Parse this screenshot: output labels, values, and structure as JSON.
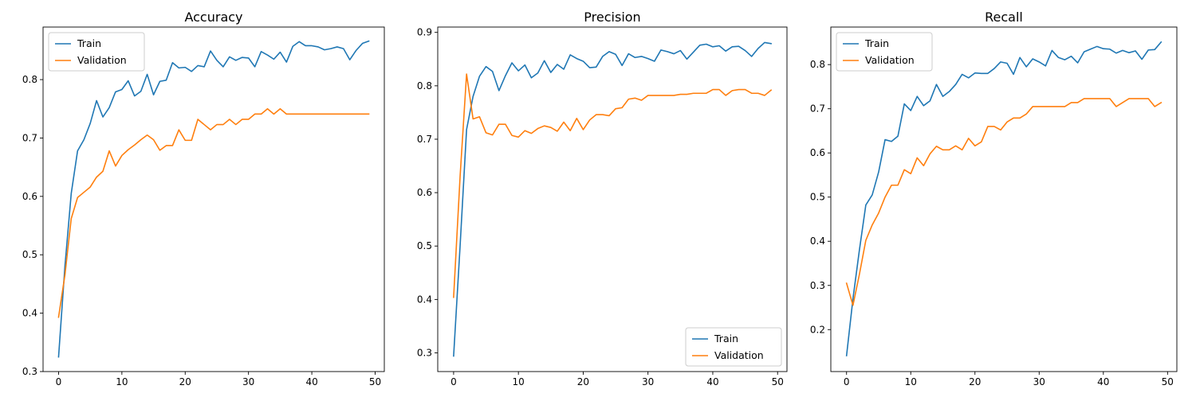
{
  "chart_data": [
    {
      "type": "line",
      "title": "Accuracy",
      "xlabel": "",
      "ylabel": "",
      "xlim": [
        -2.45,
        51.45
      ],
      "ylim": [
        0.3,
        0.89
      ],
      "xticks": [
        0,
        10,
        20,
        30,
        40,
        50
      ],
      "yticks": [
        0.3,
        0.4,
        0.5,
        0.6,
        0.7,
        0.8
      ],
      "ytick_labels": [
        "0.3",
        "0.4",
        "0.5",
        "0.6",
        "0.7",
        "0.8"
      ],
      "legend": "upper-left",
      "grid": false,
      "x": [
        0,
        1,
        2,
        3,
        4,
        5,
        6,
        7,
        8,
        9,
        10,
        11,
        12,
        13,
        14,
        15,
        16,
        17,
        18,
        19,
        20,
        21,
        22,
        23,
        24,
        25,
        26,
        27,
        28,
        29,
        30,
        31,
        32,
        33,
        34,
        35,
        36,
        37,
        38,
        39,
        40,
        41,
        42,
        43,
        44,
        45,
        46,
        47,
        48,
        49
      ],
      "series": [
        {
          "name": "Train",
          "color": "#1f77b4",
          "values": [
            0.325,
            0.48,
            0.605,
            0.678,
            0.697,
            0.725,
            0.764,
            0.736,
            0.752,
            0.779,
            0.783,
            0.798,
            0.772,
            0.78,
            0.809,
            0.774,
            0.797,
            0.799,
            0.829,
            0.82,
            0.821,
            0.814,
            0.824,
            0.822,
            0.849,
            0.833,
            0.822,
            0.839,
            0.833,
            0.838,
            0.837,
            0.822,
            0.848,
            0.842,
            0.835,
            0.847,
            0.83,
            0.857,
            0.865,
            0.858,
            0.858,
            0.856,
            0.851,
            0.853,
            0.856,
            0.853,
            0.834,
            0.85,
            0.862,
            0.866
          ]
        },
        {
          "name": "Validation",
          "color": "#ff7f0e",
          "values": [
            0.393,
            0.465,
            0.562,
            0.598,
            0.607,
            0.616,
            0.633,
            0.643,
            0.678,
            0.652,
            0.67,
            0.68,
            0.688,
            0.697,
            0.705,
            0.697,
            0.679,
            0.687,
            0.687,
            0.714,
            0.696,
            0.696,
            0.732,
            0.723,
            0.714,
            0.723,
            0.723,
            0.732,
            0.723,
            0.732,
            0.732,
            0.741,
            0.741,
            0.75,
            0.741,
            0.75,
            0.741,
            0.741,
            0.741,
            0.741,
            0.741,
            0.741,
            0.741,
            0.741,
            0.741,
            0.741,
            0.741,
            0.741,
            0.741,
            0.741
          ]
        }
      ]
    },
    {
      "type": "line",
      "title": "Precision",
      "xlabel": "",
      "ylabel": "",
      "xlim": [
        -2.45,
        51.45
      ],
      "ylim": [
        0.265,
        0.91
      ],
      "xticks": [
        0,
        10,
        20,
        30,
        40,
        50
      ],
      "yticks": [
        0.3,
        0.4,
        0.5,
        0.6,
        0.7,
        0.8,
        0.9
      ],
      "ytick_labels": [
        "0.3",
        "0.4",
        "0.5",
        "0.6",
        "0.7",
        "0.8",
        "0.9"
      ],
      "legend": "lower-right",
      "grid": false,
      "x": [
        0,
        1,
        2,
        3,
        4,
        5,
        6,
        7,
        8,
        9,
        10,
        11,
        12,
        13,
        14,
        15,
        16,
        17,
        18,
        19,
        20,
        21,
        22,
        23,
        24,
        25,
        26,
        27,
        28,
        29,
        30,
        31,
        32,
        33,
        34,
        35,
        36,
        37,
        38,
        39,
        40,
        41,
        42,
        43,
        44,
        45,
        46,
        47,
        48,
        49
      ],
      "series": [
        {
          "name": "Train",
          "color": "#1f77b4",
          "values": [
            0.294,
            0.5,
            0.718,
            0.78,
            0.818,
            0.836,
            0.827,
            0.791,
            0.819,
            0.843,
            0.828,
            0.839,
            0.815,
            0.824,
            0.847,
            0.825,
            0.84,
            0.831,
            0.858,
            0.851,
            0.846,
            0.834,
            0.835,
            0.855,
            0.864,
            0.859,
            0.838,
            0.86,
            0.853,
            0.855,
            0.851,
            0.846,
            0.867,
            0.864,
            0.86,
            0.866,
            0.85,
            0.863,
            0.876,
            0.878,
            0.873,
            0.875,
            0.865,
            0.873,
            0.874,
            0.866,
            0.855,
            0.87,
            0.881,
            0.879
          ]
        },
        {
          "name": "Validation",
          "color": "#ff7f0e",
          "values": [
            0.404,
            0.63,
            0.822,
            0.738,
            0.742,
            0.712,
            0.708,
            0.728,
            0.728,
            0.707,
            0.704,
            0.716,
            0.711,
            0.72,
            0.725,
            0.722,
            0.715,
            0.732,
            0.716,
            0.739,
            0.718,
            0.736,
            0.746,
            0.746,
            0.744,
            0.757,
            0.759,
            0.775,
            0.777,
            0.773,
            0.782,
            0.782,
            0.782,
            0.782,
            0.782,
            0.784,
            0.784,
            0.786,
            0.786,
            0.786,
            0.793,
            0.793,
            0.782,
            0.791,
            0.793,
            0.793,
            0.786,
            0.786,
            0.782,
            0.792
          ]
        }
      ]
    },
    {
      "type": "line",
      "title": "Recall",
      "xlabel": "",
      "ylabel": "",
      "xlim": [
        -2.45,
        51.45
      ],
      "ylim": [
        0.105,
        0.885
      ],
      "xticks": [
        0,
        10,
        20,
        30,
        40,
        50
      ],
      "yticks": [
        0.2,
        0.3,
        0.4,
        0.5,
        0.6,
        0.7,
        0.8
      ],
      "ytick_labels": [
        "0.2",
        "0.3",
        "0.4",
        "0.5",
        "0.6",
        "0.7",
        "0.8"
      ],
      "legend": "upper-left",
      "grid": false,
      "x": [
        0,
        1,
        2,
        3,
        4,
        5,
        6,
        7,
        8,
        9,
        10,
        11,
        12,
        13,
        14,
        15,
        16,
        17,
        18,
        19,
        20,
        21,
        22,
        23,
        24,
        25,
        26,
        27,
        28,
        29,
        30,
        31,
        32,
        33,
        34,
        35,
        36,
        37,
        38,
        39,
        40,
        41,
        42,
        43,
        44,
        45,
        46,
        47,
        48,
        49
      ],
      "series": [
        {
          "name": "Train",
          "color": "#1f77b4",
          "values": [
            0.141,
            0.27,
            0.38,
            0.482,
            0.505,
            0.557,
            0.63,
            0.626,
            0.638,
            0.711,
            0.696,
            0.728,
            0.707,
            0.718,
            0.755,
            0.728,
            0.739,
            0.755,
            0.778,
            0.77,
            0.781,
            0.78,
            0.78,
            0.791,
            0.806,
            0.803,
            0.778,
            0.816,
            0.795,
            0.813,
            0.806,
            0.797,
            0.832,
            0.816,
            0.811,
            0.819,
            0.804,
            0.829,
            0.835,
            0.841,
            0.836,
            0.835,
            0.826,
            0.832,
            0.827,
            0.831,
            0.812,
            0.833,
            0.834,
            0.851
          ]
        },
        {
          "name": "Validation",
          "color": "#ff7f0e",
          "values": [
            0.305,
            0.255,
            0.325,
            0.402,
            0.437,
            0.464,
            0.5,
            0.527,
            0.527,
            0.562,
            0.553,
            0.589,
            0.571,
            0.598,
            0.615,
            0.607,
            0.607,
            0.616,
            0.607,
            0.633,
            0.616,
            0.625,
            0.66,
            0.66,
            0.652,
            0.67,
            0.679,
            0.679,
            0.688,
            0.705,
            0.705,
            0.705,
            0.705,
            0.705,
            0.705,
            0.714,
            0.714,
            0.723,
            0.723,
            0.723,
            0.723,
            0.723,
            0.705,
            0.714,
            0.723,
            0.723,
            0.723,
            0.723,
            0.705,
            0.714
          ]
        }
      ]
    }
  ]
}
